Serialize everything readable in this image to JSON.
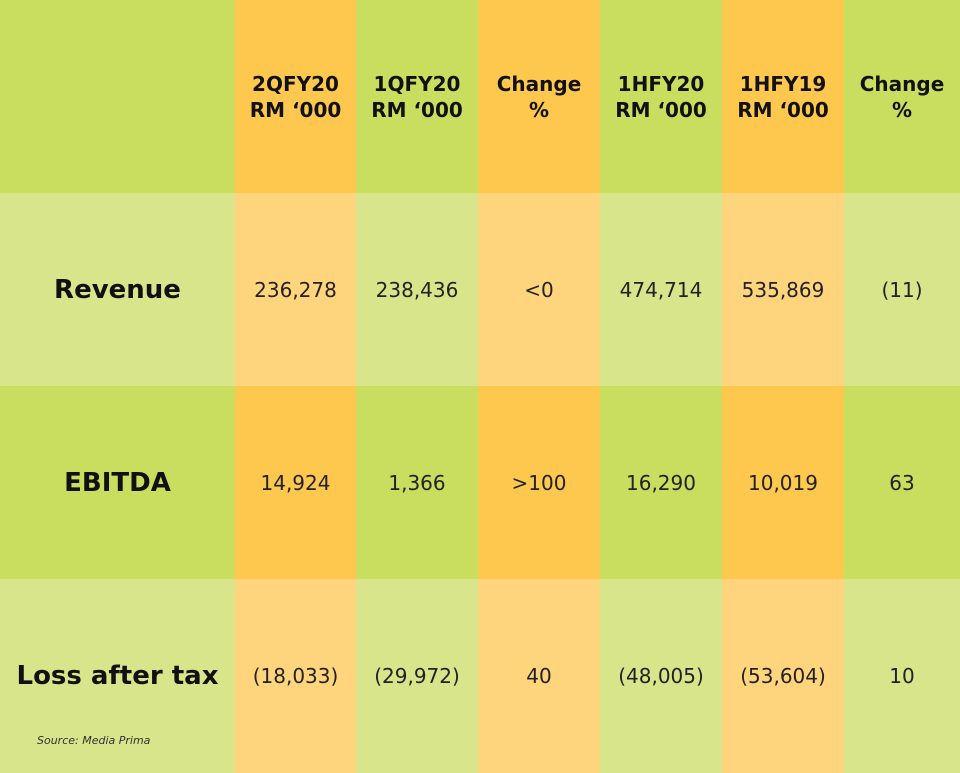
{
  "table": {
    "headers": [
      "",
      "2QFY20\nRM ‘000",
      "1QFY20\nRM ‘000",
      "Change\n%",
      "1HFY20\nRM ‘000",
      "1HFY19\nRM ‘000",
      "Change\n%"
    ],
    "rows": [
      {
        "label": "Revenue",
        "values": [
          "236,278",
          "238,436",
          "<0",
          "474,714",
          "535,869",
          "(11)"
        ]
      },
      {
        "label": "EBITDA",
        "values": [
          "14,924",
          "1,366",
          ">100",
          "16,290",
          "10,019",
          "63"
        ]
      },
      {
        "label": "Loss after tax",
        "values": [
          "(18,033)",
          "(29,972)",
          "40",
          "(48,005)",
          "(53,604)",
          "10"
        ]
      }
    ]
  },
  "source": "Source: Media Prima",
  "colors": {
    "green_header": "#c9dd5f",
    "orange_header": "#fec74e",
    "green_light": "#d9e58a",
    "orange_light": "#fed47c"
  }
}
